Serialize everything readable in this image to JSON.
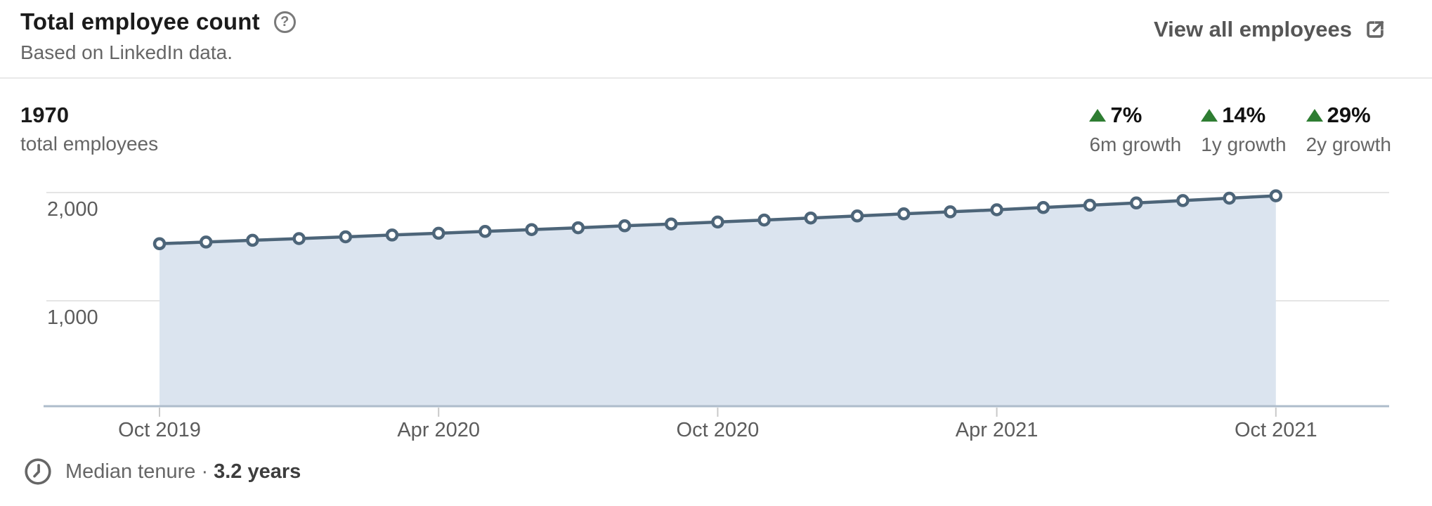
{
  "header": {
    "title": "Total employee count",
    "help_icon": "?",
    "subtitle": "Based on LinkedIn data.",
    "view_all_label": "View all employees"
  },
  "stats": {
    "total": {
      "value": "1970",
      "label": "total employees"
    },
    "growth": [
      {
        "pct": "7%",
        "label": "6m growth",
        "direction": "up"
      },
      {
        "pct": "14%",
        "label": "1y growth",
        "direction": "up"
      },
      {
        "pct": "29%",
        "label": "2y growth",
        "direction": "up"
      }
    ]
  },
  "footer": {
    "median_tenure_label": "Median tenure ·",
    "median_tenure_value": "3.2 years"
  },
  "colors": {
    "growth_positive": "#2e7d32",
    "line": "#4d6579",
    "fill": "#dbe4ef",
    "axis": "#aebccb",
    "gridline": "#e5e5e5"
  },
  "chart_data": {
    "type": "area",
    "title": "Total employee count",
    "x": [
      "Oct 2019",
      "Nov 2019",
      "Dec 2019",
      "Jan 2020",
      "Feb 2020",
      "Mar 2020",
      "Apr 2020",
      "May 2020",
      "Jun 2020",
      "Jul 2020",
      "Aug 2020",
      "Sep 2020",
      "Oct 2020",
      "Nov 2020",
      "Dec 2020",
      "Jan 2021",
      "Feb 2021",
      "Mar 2021",
      "Apr 2021",
      "May 2021",
      "Jun 2021",
      "Jul 2021",
      "Aug 2021",
      "Sep 2021",
      "Oct 2021"
    ],
    "series": [
      {
        "name": "Total employees",
        "values": [
          1527,
          1543,
          1559,
          1575,
          1591,
          1608,
          1624,
          1641,
          1658,
          1675,
          1693,
          1710,
          1728,
          1746,
          1765,
          1784,
          1803,
          1822,
          1841,
          1862,
          1883,
          1904,
          1926,
          1948,
          1970
        ]
      }
    ],
    "x_tick_indices": [
      0,
      6,
      12,
      18,
      24
    ],
    "x_tick_labels": [
      "Oct 2019",
      "Apr 2020",
      "Oct 2020",
      "Apr 2021",
      "Oct 2021"
    ],
    "y_ticks": [
      {
        "value": 2000,
        "label": "2,000"
      },
      {
        "value": 1000,
        "label": "1,000"
      }
    ],
    "ylim": [
      0,
      2300
    ],
    "grid": "horizontal",
    "legend": "none",
    "markers": "circle",
    "colors": {
      "line": "#4d6579",
      "fill": "#dbe4ef",
      "marker_fill": "#ffffff"
    }
  }
}
